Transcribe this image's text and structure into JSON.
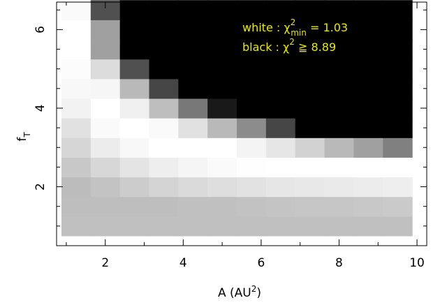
{
  "chart_data": {
    "type": "heatmap",
    "x_label_main": "A (AU",
    "x_label_sup": "2",
    "x_label_end": ")",
    "y_label_main": "f",
    "y_label_sub": "T",
    "x_range": [
      0.75,
      10.25
    ],
    "y_range": [
      0.5,
      6.7
    ],
    "x_ticks": [
      2,
      4,
      6,
      8,
      10
    ],
    "y_ticks": [
      2,
      4,
      6
    ],
    "legend": {
      "line1_prefix": "white : χ",
      "line1_sup": "2",
      "line1_sub": "min",
      "line1_suffix": " =   1.03",
      "line2_prefix": "black : χ",
      "line2_sup": "2",
      "line2_suffix": " ≧   8.89",
      "color": "#e8e800"
    },
    "x_centers": [
      1.25,
      2.0,
      2.75,
      3.5,
      4.25,
      5.0,
      5.75,
      6.5,
      7.25,
      8.0,
      8.75,
      9.5
    ],
    "x_bin_width": 0.75,
    "y_centers": [
      1.0,
      1.5,
      2.0,
      2.5,
      3.0,
      3.5,
      4.0,
      4.5,
      5.0,
      5.5,
      6.0,
      6.5
    ],
    "y_bin_height": 0.5,
    "gray_levels_bottom_to_top": [
      [
        192,
        192,
        192,
        192,
        192,
        192,
        192,
        192,
        192,
        192,
        192,
        192
      ],
      [
        190,
        190,
        190,
        190,
        192,
        192,
        194,
        196,
        198,
        198,
        200,
        202
      ],
      [
        188,
        195,
        204,
        212,
        218,
        222,
        226,
        230,
        232,
        234,
        236,
        238
      ],
      [
        200,
        215,
        228,
        238,
        245,
        250,
        254,
        255,
        255,
        255,
        255,
        255
      ],
      [
        214,
        236,
        248,
        255,
        255,
        255,
        244,
        230,
        210,
        185,
        160,
        128
      ],
      [
        225,
        250,
        255,
        250,
        225,
        185,
        140,
        70,
        0,
        0,
        0,
        0
      ],
      [
        242,
        255,
        240,
        190,
        120,
        25,
        0,
        0,
        0,
        0,
        0,
        0
      ],
      [
        248,
        246,
        185,
        70,
        0,
        0,
        0,
        0,
        0,
        0,
        0,
        0
      ],
      [
        252,
        220,
        80,
        0,
        0,
        0,
        0,
        0,
        0,
        0,
        0,
        0
      ],
      [
        255,
        160,
        0,
        0,
        0,
        0,
        0,
        0,
        0,
        0,
        0,
        0
      ],
      [
        255,
        160,
        0,
        0,
        0,
        0,
        0,
        0,
        0,
        0,
        0,
        0
      ],
      [
        250,
        80,
        0,
        0,
        0,
        0,
        0,
        0,
        0,
        0,
        0,
        0
      ]
    ]
  }
}
